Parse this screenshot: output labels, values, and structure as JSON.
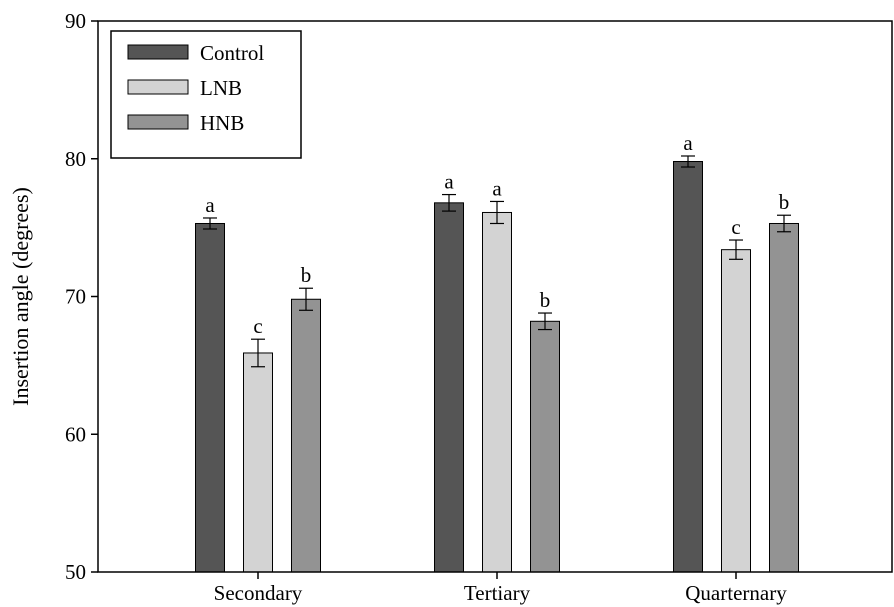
{
  "chart_data": {
    "type": "bar",
    "title": "",
    "xlabel": "",
    "ylabel": "Insertion angle (degrees)",
    "ylim": [
      50,
      90
    ],
    "yticks": [
      50,
      60,
      70,
      80,
      90
    ],
    "categories": [
      "Secondary",
      "Tertiary",
      "Quarternary"
    ],
    "series": [
      {
        "name": "Control",
        "color": "#555555",
        "values": [
          75.3,
          76.8,
          79.8
        ],
        "errors": [
          0.4,
          0.6,
          0.4
        ],
        "letters": [
          "a",
          "a",
          "a"
        ]
      },
      {
        "name": "LNB",
        "color": "#d3d3d3",
        "values": [
          65.9,
          76.1,
          73.4
        ],
        "errors": [
          1.0,
          0.8,
          0.7
        ],
        "letters": [
          "c",
          "a",
          "c"
        ]
      },
      {
        "name": "HNB",
        "color": "#939393",
        "values": [
          69.8,
          68.2,
          75.3
        ],
        "errors": [
          0.8,
          0.6,
          0.6
        ],
        "letters": [
          "b",
          "b",
          "b"
        ]
      }
    ],
    "legend": {
      "position": "top-left"
    },
    "grid": false
  }
}
